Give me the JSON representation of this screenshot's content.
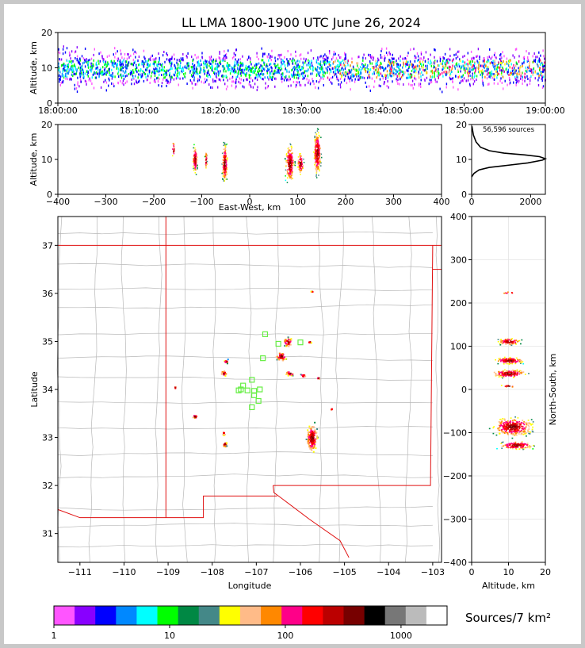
{
  "title": "LL LMA 1800-1900 UTC June 26, 2024",
  "colors": {
    "frame": "#c8c8c8",
    "state_border": "#e01010",
    "county_border": "#b8b8b8",
    "station": "#66ee44"
  },
  "chart_data": [
    {
      "id": "time_height",
      "type": "scatter",
      "xlabel": "",
      "ylabel": "Altitude, km",
      "xlim": [
        "18:00:00",
        "19:00:00"
      ],
      "ylim": [
        0,
        20
      ],
      "xticks": [
        "18:00:00",
        "18:10:00",
        "18:20:00",
        "18:30:00",
        "18:40:00",
        "18:50:00",
        "19:00:00"
      ],
      "yticks": [
        0,
        10,
        20
      ],
      "band_center_km": 10,
      "band_halfwidth_km": 7
    },
    {
      "id": "ew_height",
      "type": "scatter",
      "xlabel": "East-West, km",
      "ylabel": "Altitude, km",
      "xlim": [
        -400,
        400
      ],
      "ylim": [
        0,
        20
      ],
      "xticks": [
        -400,
        -300,
        -200,
        -100,
        0,
        100,
        200,
        300,
        400
      ],
      "yticks": [
        0,
        10,
        20
      ],
      "clusters": [
        {
          "x": -160,
          "xw": 5,
          "y": 13,
          "yw": 3,
          "n": 15
        },
        {
          "x": -115,
          "xw": 6,
          "y": 10,
          "yw": 5,
          "n": 120
        },
        {
          "x": -92,
          "xw": 3,
          "y": 10,
          "yw": 3,
          "n": 30
        },
        {
          "x": -53,
          "xw": 7,
          "y": 9,
          "yw": 7,
          "n": 170
        },
        {
          "x": 83,
          "xw": 12,
          "y": 9,
          "yw": 7,
          "n": 220
        },
        {
          "x": 105,
          "xw": 8,
          "y": 9,
          "yw": 4,
          "n": 80
        },
        {
          "x": 140,
          "xw": 10,
          "y": 12,
          "yw": 8,
          "n": 260
        }
      ]
    },
    {
      "id": "altitude_histogram",
      "type": "line",
      "annotation": "56,596 sources",
      "xlim": [
        0,
        2500
      ],
      "ylim": [
        0,
        20
      ],
      "xticks": [
        0,
        2000
      ],
      "yticks": [
        0,
        10,
        20
      ],
      "points": [
        [
          0,
          5
        ],
        [
          80,
          6
        ],
        [
          250,
          7
        ],
        [
          600,
          7.7
        ],
        [
          1200,
          8.3
        ],
        [
          1900,
          9
        ],
        [
          2400,
          9.8
        ],
        [
          2500,
          10.2
        ],
        [
          2300,
          10.8
        ],
        [
          1800,
          11.3
        ],
        [
          1100,
          11.8
        ],
        [
          600,
          12.5
        ],
        [
          300,
          13.5
        ],
        [
          150,
          15
        ],
        [
          60,
          17
        ],
        [
          10,
          19.5
        ]
      ]
    },
    {
      "id": "plan_view",
      "type": "scatter",
      "xlabel": "Longitude",
      "ylabel": "Latitude",
      "xlim": [
        -111.5,
        -102.8
      ],
      "ylim": [
        30.4,
        37.6
      ],
      "xticks": [
        -111,
        -110,
        -109,
        -108,
        -107,
        -106,
        -105,
        -104,
        -103
      ],
      "yticks": [
        31,
        32,
        33,
        34,
        35,
        36,
        37
      ],
      "clusters": [
        {
          "lon": -106.3,
          "lat": 35.0,
          "w": 0.12,
          "h": 0.12,
          "n": 40
        },
        {
          "lon": -106.45,
          "lat": 34.7,
          "w": 0.15,
          "h": 0.12,
          "n": 40
        },
        {
          "lon": -106.25,
          "lat": 34.35,
          "w": 0.12,
          "h": 0.06,
          "n": 20
        },
        {
          "lon": -107.7,
          "lat": 34.6,
          "w": 0.05,
          "h": 0.05,
          "n": 12
        },
        {
          "lon": -107.75,
          "lat": 34.35,
          "w": 0.08,
          "h": 0.07,
          "n": 18
        },
        {
          "lon": -108.4,
          "lat": 33.45,
          "w": 0.08,
          "h": 0.05,
          "n": 15
        },
        {
          "lon": -107.75,
          "lat": 33.1,
          "w": 0.04,
          "h": 0.05,
          "n": 8
        },
        {
          "lon": -107.73,
          "lat": 32.87,
          "w": 0.06,
          "h": 0.08,
          "n": 14
        },
        {
          "lon": -105.75,
          "lat": 33.0,
          "w": 0.15,
          "h": 0.35,
          "n": 160
        },
        {
          "lon": -105.95,
          "lat": 34.3,
          "w": 0.08,
          "h": 0.04,
          "n": 12
        },
        {
          "lon": -105.6,
          "lat": 34.25,
          "w": 0.05,
          "h": 0.03,
          "n": 6
        },
        {
          "lon": -105.8,
          "lat": 35.0,
          "w": 0.05,
          "h": 0.03,
          "n": 6
        },
        {
          "lon": -108.85,
          "lat": 34.05,
          "w": 0.03,
          "h": 0.03,
          "n": 6
        },
        {
          "lon": -105.75,
          "lat": 36.05,
          "w": 0.03,
          "h": 0.02,
          "n": 4
        },
        {
          "lon": -105.3,
          "lat": 33.6,
          "w": 0.03,
          "h": 0.02,
          "n": 4
        }
      ],
      "stations": [
        [
          -106.8,
          35.15
        ],
        [
          -106.5,
          34.95
        ],
        [
          -106.0,
          34.98
        ],
        [
          -106.85,
          34.65
        ],
        [
          -107.1,
          34.2
        ],
        [
          -107.3,
          34.08
        ],
        [
          -107.4,
          33.98
        ],
        [
          -107.35,
          34.0
        ],
        [
          -107.2,
          33.98
        ],
        [
          -107.05,
          33.97
        ],
        [
          -106.92,
          34.0
        ],
        [
          -107.05,
          33.88
        ],
        [
          -106.95,
          33.76
        ],
        [
          -107.1,
          33.63
        ]
      ]
    },
    {
      "id": "ns_height",
      "type": "scatter",
      "xlabel": "Altitude, km",
      "ylabel": "North-South, km",
      "xlim": [
        0,
        20
      ],
      "ylim": [
        -400,
        400
      ],
      "xticks": [
        0,
        10,
        20
      ],
      "yticks": [
        -400,
        -300,
        -200,
        -100,
        0,
        100,
        200,
        300,
        400
      ],
      "clusters": [
        {
          "y": 112,
          "yw": 10,
          "x": 10,
          "xw": 4,
          "n": 90
        },
        {
          "y": 68,
          "yw": 10,
          "x": 10,
          "xw": 5,
          "n": 130
        },
        {
          "y": 38,
          "yw": 12,
          "x": 10,
          "xw": 6,
          "n": 140
        },
        {
          "y": -85,
          "yw": 28,
          "x": 11,
          "xw": 7,
          "n": 320
        },
        {
          "y": -128,
          "yw": 12,
          "x": 12,
          "xw": 6,
          "n": 130
        },
        {
          "y": 225,
          "yw": 3,
          "x": 10,
          "xw": 3,
          "n": 6
        },
        {
          "y": 9,
          "yw": 4,
          "x": 10,
          "xw": 3,
          "n": 10
        }
      ]
    },
    {
      "id": "density_colorbar",
      "type": "heatmap",
      "label": "Sources/7 km²",
      "tick_labels": [
        "1",
        "10",
        "100",
        "1000"
      ],
      "colors": [
        "#ff55ff",
        "#8800ff",
        "#0000ff",
        "#0088ff",
        "#00ffff",
        "#00ff00",
        "#008844",
        "#448888",
        "#ffff00",
        "#ffbb88",
        "#ff8800",
        "#ff0088",
        "#ff0000",
        "#bb0000",
        "#770000",
        "#000000",
        "#777777",
        "#bbbbbb",
        "#ffffff"
      ]
    }
  ]
}
